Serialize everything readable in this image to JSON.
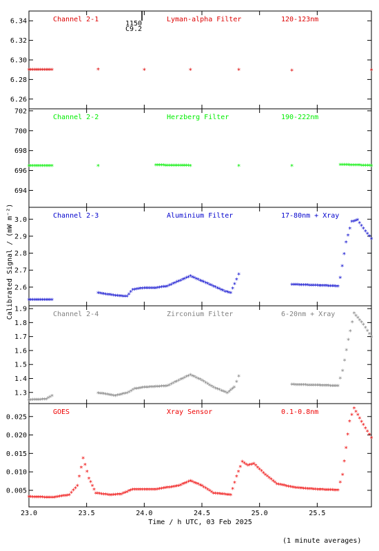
{
  "chart_data": {
    "type": "scatter",
    "xlabel": "Time / h UTC, 03 Feb 2025",
    "ylabel": "Calibrated Signal / (mW m⁻²)",
    "xlim": [
      23.0,
      25.97
    ],
    "xticks": [
      "23.0",
      "23.5",
      "24.0",
      "24.5",
      "25.0",
      "25.5"
    ],
    "panels": [
      {
        "channel": "Channel 2-1",
        "filter": "Lyman-alpha Filter",
        "band": "120-123nm",
        "color": "#dd0000",
        "ylim": [
          6.25,
          6.35
        ],
        "yticks": [
          "6.26",
          "6.28",
          "6.30",
          "6.32",
          "6.34"
        ],
        "points": [
          [
            23.0,
            6.289
          ],
          [
            23.2,
            6.289
          ],
          [
            23.6,
            6.2895
          ],
          [
            24.0,
            6.289
          ],
          [
            24.4,
            6.289
          ],
          [
            24.82,
            6.289
          ],
          [
            25.28,
            6.2885
          ],
          [
            25.97,
            6.2888
          ]
        ],
        "marker": {
          "x": 23.98,
          "labels": [
            "1150",
            "C9.2"
          ]
        }
      },
      {
        "channel": "Channel 2-2",
        "filter": "Herzberg Filter",
        "band": "190-222nm",
        "color": "#00ee00",
        "ylim": [
          692.3,
          702.2
        ],
        "yticks": [
          "694",
          "696",
          "698",
          "700",
          "702"
        ],
        "points": [
          [
            23.0,
            696.4
          ],
          [
            23.2,
            696.4
          ],
          [
            23.6,
            696.4
          ],
          [
            24.1,
            696.45
          ],
          [
            24.4,
            696.4
          ],
          [
            24.82,
            696.4
          ],
          [
            25.28,
            696.4
          ],
          [
            25.7,
            696.5
          ],
          [
            25.97,
            696.4
          ]
        ]
      },
      {
        "channel": "Channel 2-3",
        "filter": "Aluminium Filter",
        "band": "17-80nm + Xray",
        "color": "#0000cc",
        "ylim": [
          2.49,
          3.07
        ],
        "yticks": [
          "2.6",
          "2.7",
          "2.8",
          "2.9",
          "3.0"
        ],
        "points": [
          [
            23.0,
            2.52
          ],
          [
            23.2,
            2.52
          ],
          [
            23.6,
            2.56
          ],
          [
            23.75,
            2.545
          ],
          [
            23.85,
            2.54
          ],
          [
            23.9,
            2.58
          ],
          [
            24.0,
            2.59
          ],
          [
            24.1,
            2.59
          ],
          [
            24.2,
            2.6
          ],
          [
            24.3,
            2.63
          ],
          [
            24.4,
            2.66
          ],
          [
            24.5,
            2.63
          ],
          [
            24.6,
            2.6
          ],
          [
            24.7,
            2.57
          ],
          [
            24.75,
            2.56
          ],
          [
            24.8,
            2.64
          ],
          [
            24.82,
            2.67
          ],
          [
            25.28,
            2.61
          ],
          [
            25.5,
            2.605
          ],
          [
            25.68,
            2.6
          ],
          [
            25.7,
            2.65
          ],
          [
            25.75,
            2.86
          ],
          [
            25.8,
            2.98
          ],
          [
            25.85,
            2.99
          ],
          [
            25.9,
            2.94
          ],
          [
            25.97,
            2.88
          ]
        ]
      },
      {
        "channel": "Channel 2-4",
        "filter": "Zirconium Filter",
        "band": "6-20nm + Xray",
        "color": "#808080",
        "ylim": [
          1.22,
          1.92
        ],
        "yticks": [
          "1.3",
          "1.4",
          "1.5",
          "1.6",
          "1.7",
          "1.8",
          "1.9"
        ],
        "points": [
          [
            23.0,
            1.24
          ],
          [
            23.15,
            1.245
          ],
          [
            23.2,
            1.27
          ],
          [
            23.6,
            1.29
          ],
          [
            23.75,
            1.27
          ],
          [
            23.85,
            1.29
          ],
          [
            23.92,
            1.32
          ],
          [
            24.0,
            1.33
          ],
          [
            24.2,
            1.34
          ],
          [
            24.3,
            1.38
          ],
          [
            24.4,
            1.42
          ],
          [
            24.5,
            1.38
          ],
          [
            24.6,
            1.33
          ],
          [
            24.72,
            1.29
          ],
          [
            24.78,
            1.33
          ],
          [
            24.82,
            1.41
          ],
          [
            25.28,
            1.35
          ],
          [
            25.5,
            1.345
          ],
          [
            25.68,
            1.34
          ],
          [
            25.72,
            1.45
          ],
          [
            25.77,
            1.67
          ],
          [
            25.82,
            1.86
          ],
          [
            25.9,
            1.78
          ],
          [
            25.97,
            1.69
          ]
        ]
      },
      {
        "channel": "GOES",
        "filter": "Xray Sensor",
        "band": "0.1-0.8nm",
        "color": "#ee0000",
        "ylim": [
          0.0005,
          0.0285
        ],
        "yticks": [
          "0.005",
          "0.010",
          "0.015",
          "0.020",
          "0.025"
        ],
        "points": [
          [
            23.0,
            0.003
          ],
          [
            23.2,
            0.0028
          ],
          [
            23.35,
            0.0035
          ],
          [
            23.42,
            0.006
          ],
          [
            23.47,
            0.0135
          ],
          [
            23.52,
            0.008
          ],
          [
            23.58,
            0.004
          ],
          [
            23.7,
            0.0035
          ],
          [
            23.8,
            0.0037
          ],
          [
            23.9,
            0.005
          ],
          [
            24.1,
            0.005
          ],
          [
            24.3,
            0.006
          ],
          [
            24.4,
            0.0073
          ],
          [
            24.5,
            0.006
          ],
          [
            24.6,
            0.004
          ],
          [
            24.75,
            0.0035
          ],
          [
            24.8,
            0.0085
          ],
          [
            24.85,
            0.0125
          ],
          [
            24.9,
            0.0115
          ],
          [
            24.95,
            0.012
          ],
          [
            25.05,
            0.009
          ],
          [
            25.15,
            0.0065
          ],
          [
            25.3,
            0.0055
          ],
          [
            25.5,
            0.005
          ],
          [
            25.68,
            0.0048
          ],
          [
            25.72,
            0.009
          ],
          [
            25.78,
            0.0235
          ],
          [
            25.82,
            0.027
          ],
          [
            25.9,
            0.0225
          ],
          [
            25.97,
            0.019
          ]
        ]
      }
    ]
  },
  "footnote": "(1 minute averages)"
}
